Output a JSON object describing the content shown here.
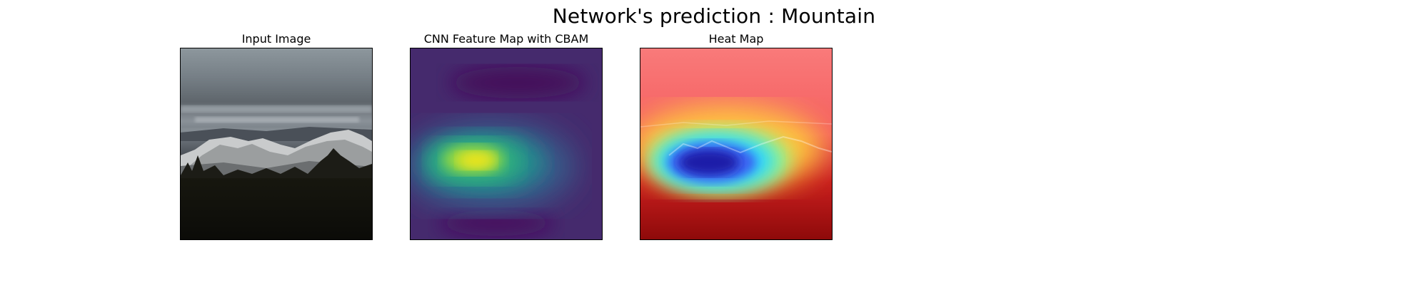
{
  "figure": {
    "suptitle": "Network's prediction : Mountain"
  },
  "panels": [
    {
      "title": "Input Image"
    },
    {
      "title": "CNN Feature Map with CBAM"
    },
    {
      "title": "Heat Map"
    }
  ]
}
